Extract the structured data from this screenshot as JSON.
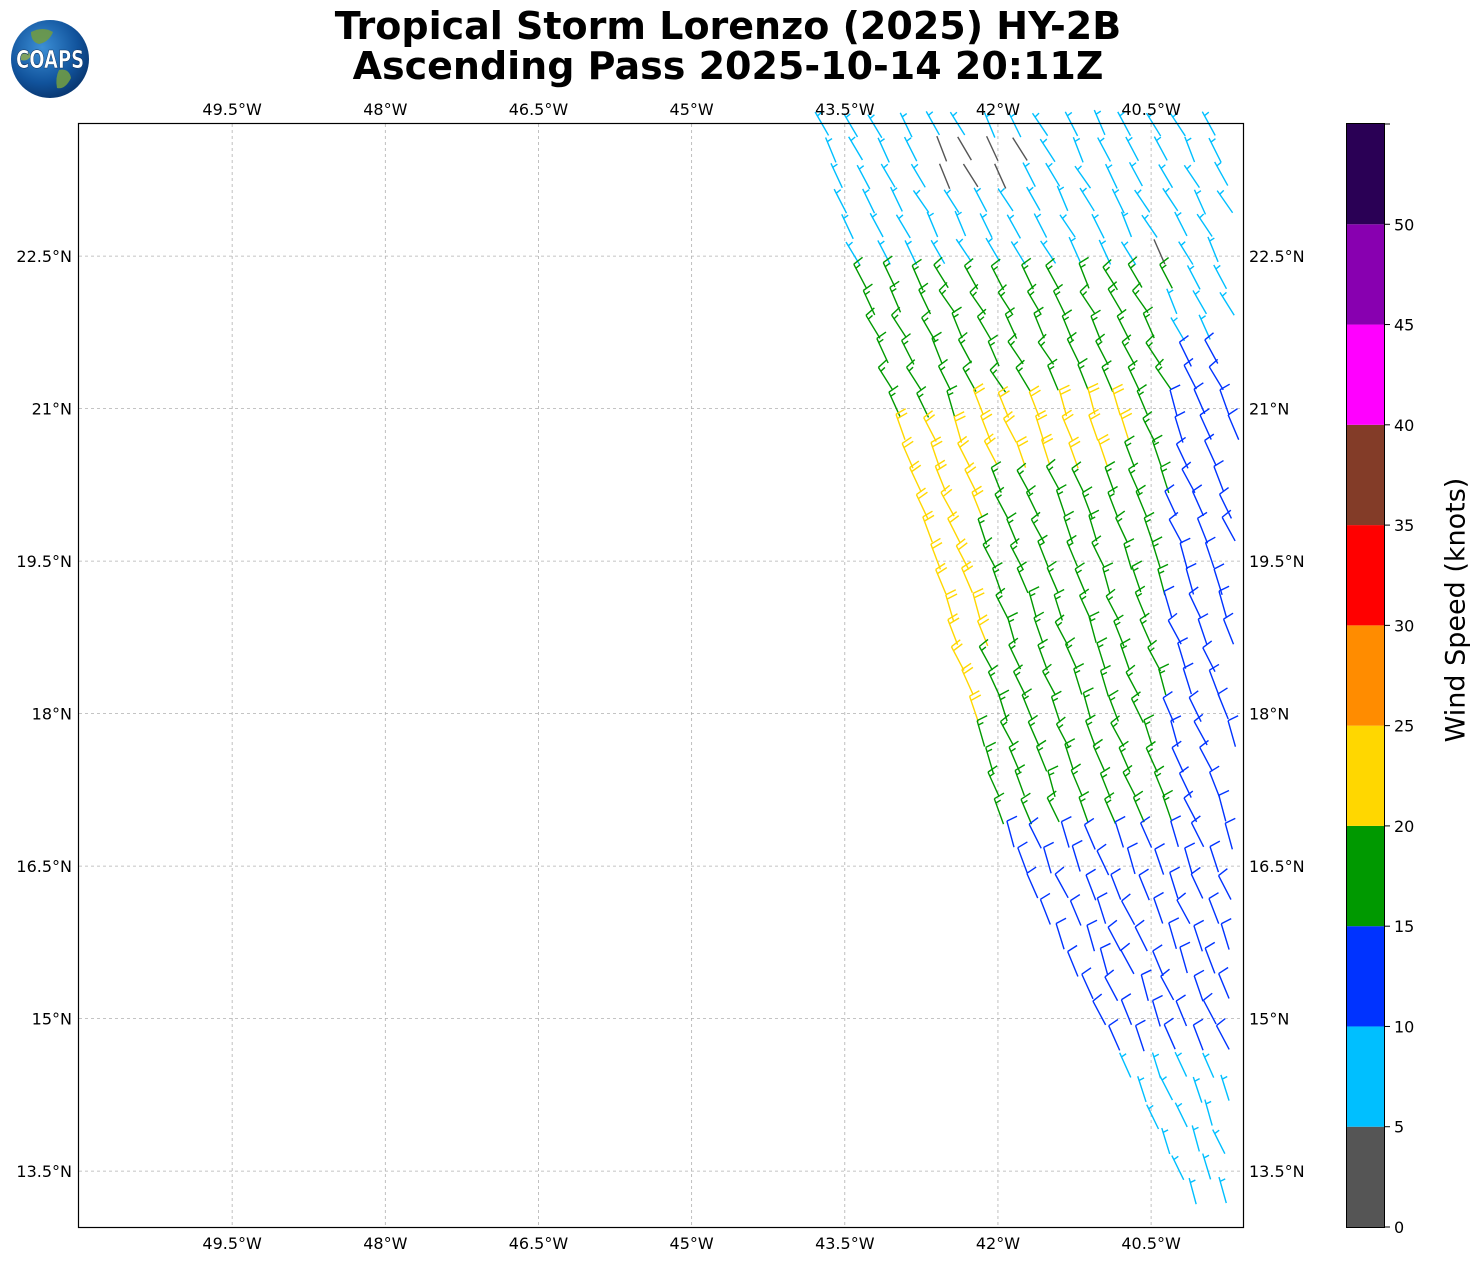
{
  "title": {
    "line1": "Tropical Storm Lorenzo (2025) HY-2B",
    "line2": "Ascending Pass 2025-10-14 20:11Z"
  },
  "logo": {
    "text": "COAPS",
    "icon": "globe-icon"
  },
  "map": {
    "lon_range": [
      -51.0,
      -39.6
    ],
    "lat_range": [
      12.95,
      23.8
    ],
    "lon_ticks": [
      {
        "value": -49.5,
        "label": "49.5°W"
      },
      {
        "value": -48.0,
        "label": "48°W"
      },
      {
        "value": -46.5,
        "label": "46.5°W"
      },
      {
        "value": -45.0,
        "label": "45°W"
      },
      {
        "value": -43.5,
        "label": "43.5°W"
      },
      {
        "value": -42.0,
        "label": "42°W"
      },
      {
        "value": -40.5,
        "label": "40.5°W"
      }
    ],
    "lat_ticks": [
      {
        "value": 22.5,
        "label": "22.5°N"
      },
      {
        "value": 21.0,
        "label": "21°N"
      },
      {
        "value": 19.5,
        "label": "19.5°N"
      },
      {
        "value": 18.0,
        "label": "18°N"
      },
      {
        "value": 16.5,
        "label": "16.5°N"
      },
      {
        "value": 15.0,
        "label": "15°N"
      },
      {
        "value": 13.5,
        "label": "13.5°N"
      }
    ],
    "grid": true,
    "swath_left_edge": [
      [
        -43.75,
        23.7
      ],
      [
        -41.95,
        16.7
      ],
      [
        -40.0,
        12.95
      ]
    ]
  },
  "colorbar": {
    "label": "Wind Speed (knots)",
    "bins": [
      {
        "min": 0,
        "max": 5,
        "color": "#555555"
      },
      {
        "min": 5,
        "max": 10,
        "color": "#00bfff"
      },
      {
        "min": 10,
        "max": 15,
        "color": "#0033ff"
      },
      {
        "min": 15,
        "max": 20,
        "color": "#009900"
      },
      {
        "min": 20,
        "max": 25,
        "color": "#ffd700"
      },
      {
        "min": 25,
        "max": 30,
        "color": "#ff8c00"
      },
      {
        "min": 30,
        "max": 35,
        "color": "#ff0000"
      },
      {
        "min": 35,
        "max": 40,
        "color": "#833c28"
      },
      {
        "min": 40,
        "max": 45,
        "color": "#ff00ff"
      },
      {
        "min": 45,
        "max": 50,
        "color": "#8800b0"
      },
      {
        "min": 50,
        "max": 55,
        "color": "#2a0055"
      }
    ],
    "tick_labels": [
      "0",
      "5",
      "10",
      "15",
      "20",
      "25",
      "30",
      "35",
      "40",
      "45",
      "50"
    ]
  },
  "wind_zones": [
    {
      "speed_kt": 22,
      "lon": [
        -43.3,
        -42.1
      ],
      "lat": [
        17.8,
        20.9
      ]
    },
    {
      "speed_kt": 22,
      "lon": [
        -42.2,
        -40.7
      ],
      "lat": [
        20.2,
        21.0
      ]
    },
    {
      "speed_kt": 27,
      "lon": [
        -41.55,
        -41.35
      ],
      "lat": [
        20.65,
        20.85
      ]
    },
    {
      "speed_kt": 3,
      "lon": [
        -42.6,
        -41.7
      ],
      "lat": [
        23.0,
        23.6
      ]
    },
    {
      "speed_kt": 3,
      "lon": [
        -40.5,
        -40.25
      ],
      "lat": [
        22.35,
        22.55
      ]
    },
    {
      "speed_kt": 17,
      "lon": [
        -43.5,
        -40.3
      ],
      "lat": [
        16.7,
        22.2
      ]
    },
    {
      "speed_kt": 12,
      "lon": [
        -42.0,
        -39.6
      ],
      "lat": [
        14.5,
        21.5
      ]
    },
    {
      "speed_kt": 7,
      "lon": [
        -44.0,
        -39.6
      ],
      "lat": [
        12.95,
        23.8
      ]
    }
  ]
}
